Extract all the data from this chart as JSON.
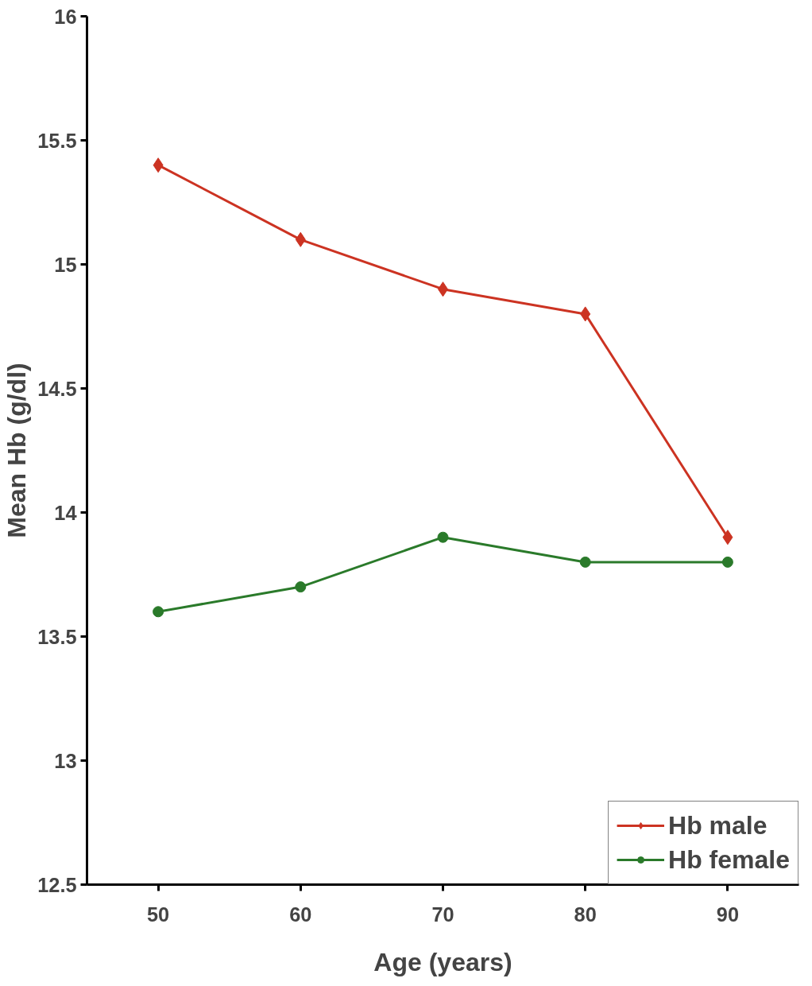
{
  "chart_data": {
    "type": "line",
    "xlabel": "Age (years)",
    "ylabel": "Mean Hb (g/dl)",
    "categories": [
      "50",
      "60",
      "70",
      "80",
      "90"
    ],
    "series": [
      {
        "name": "Hb male",
        "color": "#cc3322",
        "marker": "diamond",
        "values": [
          15.4,
          15.1,
          14.9,
          14.8,
          13.9
        ]
      },
      {
        "name": "Hb female",
        "color": "#2a7a2a",
        "marker": "circle",
        "values": [
          13.6,
          13.7,
          13.9,
          13.8,
          13.8
        ]
      }
    ],
    "ylim": [
      12.5,
      16
    ],
    "yticks": [
      12.5,
      13,
      13.5,
      14,
      14.5,
      15,
      15.5,
      16
    ],
    "grid": false,
    "legend": "bottom right",
    "line_style": "solid"
  }
}
